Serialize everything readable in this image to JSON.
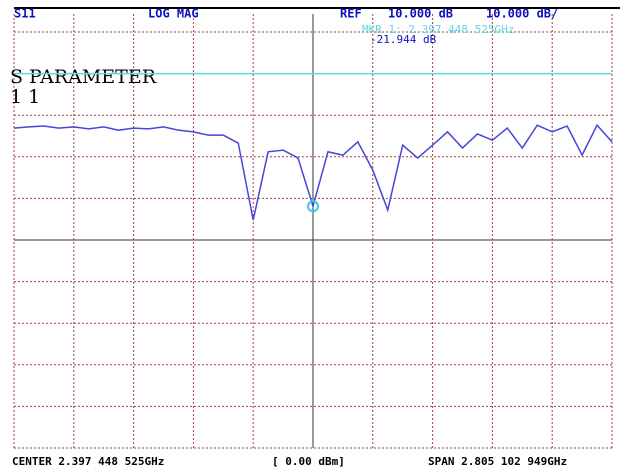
{
  "chart_data": {
    "type": "line",
    "channel": "S11",
    "format": "LOG MAG",
    "ref_label": "REF",
    "ref_value": "10.000 dB",
    "scale": "10.000 dB/",
    "marker_label": "MKR 1: 2.397 448 525GHz",
    "marker_value": "-21.944 dB",
    "marker_index": 20,
    "title": "S PARAMETER",
    "subtitle": "1 1",
    "center": "CENTER 2.397 448 525GHz",
    "power": "[ 0.00 dBm]",
    "span": "SPAN 2.805 102 949GHz",
    "ylim": [
      -80,
      20
    ],
    "yticks": [
      -80,
      -70,
      -60,
      -50,
      -40,
      -30,
      -20,
      -10,
      0,
      10,
      20
    ],
    "reference_line": 10,
    "grid": true,
    "color": "#4646d8",
    "values": [
      -3.1,
      -2.8,
      -2.6,
      -3.1,
      -2.8,
      -3.3,
      -2.8,
      -3.6,
      -3.1,
      -3.3,
      -2.8,
      -3.6,
      -4.0,
      -4.8,
      -4.8,
      -6.7,
      -25.2,
      -8.8,
      -8.4,
      -10.3,
      -21.9,
      -8.8,
      -9.6,
      -6.4,
      -13.2,
      -22.8,
      -7.2,
      -10.3,
      -7.2,
      -4.0,
      -7.9,
      -4.5,
      -6.0,
      -3.1,
      -7.9,
      -2.4,
      -4.0,
      -2.6,
      -9.6,
      -2.4,
      -6.4
    ]
  }
}
